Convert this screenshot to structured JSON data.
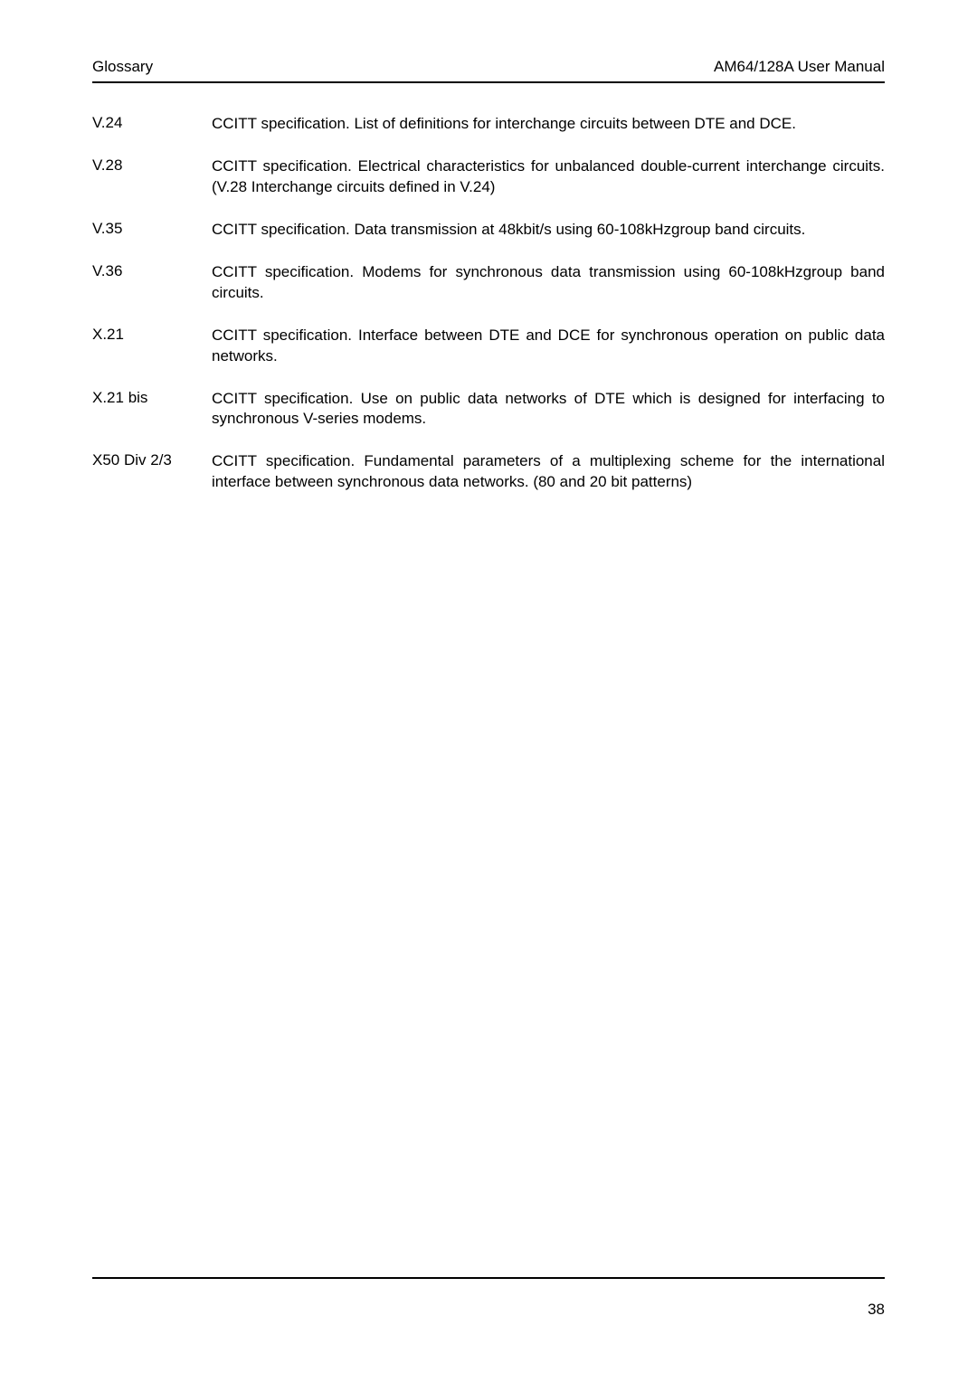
{
  "header": {
    "left": "Glossary",
    "right": "AM64/128A User Manual"
  },
  "entries": [
    {
      "term": "V.24",
      "definition": "CCITT specification. List of definitions for interchange circuits between DTE and DCE."
    },
    {
      "term": "V.28",
      "definition": "CCITT specification. Electrical characteristics for unbalanced double-current interchange circuits. (V.28 Interchange circuits defined in V.24)"
    },
    {
      "term": "V.35",
      "definition": "CCITT specification. Data transmission at 48kbit/s using 60-108kHzgroup band circuits."
    },
    {
      "term": "V.36",
      "definition": "CCITT specification. Modems for synchronous data transmission using 60-108kHzgroup band circuits."
    },
    {
      "term": "X.21",
      "definition": "CCITT specification. Interface between DTE and DCE for synchronous operation on public data networks."
    },
    {
      "term": "X.21 bis",
      "definition": "CCITT specification. Use on public data networks of DTE which is designed for interfacing to synchronous V-series modems."
    },
    {
      "term": "X50 Div 2/3",
      "definition": "CCITT specification. Fundamental parameters of a multiplexing scheme for the international interface between synchronous data networks. (80 and 20 bit patterns)"
    }
  ],
  "footer": {
    "page_number": "38"
  }
}
